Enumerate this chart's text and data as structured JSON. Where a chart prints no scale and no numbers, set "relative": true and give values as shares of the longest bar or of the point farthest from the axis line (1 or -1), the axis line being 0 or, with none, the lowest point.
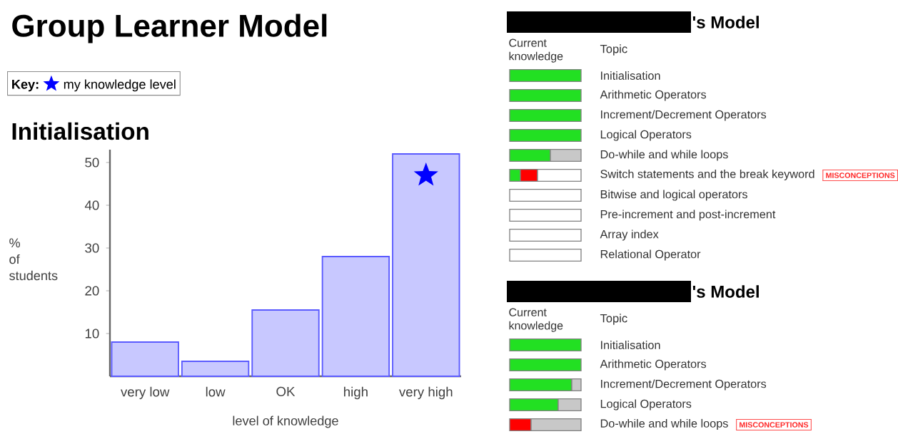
{
  "chart_data": [
    {
      "type": "bar",
      "title": "Group Learner Model",
      "subtitle": "Initialisation",
      "xlabel": "level of knowledge",
      "ylabel": "% of students",
      "legend_title": "Key:",
      "legend": "top left",
      "categories": [
        "very low",
        "low",
        "OK",
        "high",
        "very high"
      ],
      "series": [
        {
          "color": "#c8c8ff",
          "values": [
            8,
            3.5,
            15.5,
            28,
            52
          ]
        },
        {
          "type": "scatter",
          "name": "my knowledge level",
          "color": "#0000ff",
          "marker": "star",
          "x": [
            "very high"
          ],
          "values": [
            47
          ]
        }
      ],
      "ylim": [
        0,
        53
      ],
      "yticks": [
        10,
        20,
        30,
        40,
        50
      ]
    },
    {
      "type": "bar",
      "orientation": "horizontal",
      "stacked": true,
      "relative": true,
      "title": "'s Model",
      "xlabel": "Current knowledge",
      "ylabel": "Topic",
      "categories": [
        "Initialisation",
        "Arithmetic Operators",
        "Increment/Decrement Operators",
        "Logical Operators",
        "Do-while and while loops",
        "Switch statements and the break keyword",
        "Bitwise and logical operators",
        "Pre-increment and post-increment",
        "Array index",
        "Relational Operator"
      ],
      "series": [
        {
          "color": "#22e022",
          "values": [
            1,
            1,
            1,
            1,
            0.57,
            0.15,
            0,
            0,
            0,
            0
          ]
        },
        {
          "color": "#ff0000",
          "values": [
            0,
            0,
            0,
            0,
            0,
            0.24,
            0,
            0,
            0,
            0
          ]
        },
        {
          "color": "#c8c8c8",
          "values": [
            0,
            0,
            0,
            0,
            0.43,
            0,
            0,
            0,
            0,
            0
          ]
        },
        {
          "color": "#ffffff",
          "values": [
            0,
            0,
            0,
            0,
            0,
            0.61,
            1,
            1,
            1,
            1
          ]
        }
      ],
      "annotations": [
        "MISCONCEPTIONS"
      ]
    },
    {
      "type": "bar",
      "orientation": "horizontal",
      "stacked": true,
      "relative": true,
      "title": "'s Model",
      "xlabel": "Current knowledge",
      "ylabel": "Topic",
      "categories": [
        "Initialisation",
        "Arithmetic Operators",
        "Increment/Decrement Operators",
        "Logical Operators",
        "Do-while and while loops"
      ],
      "series": [
        {
          "color": "#22e022",
          "values": [
            1,
            1,
            0.87,
            0.68,
            0
          ]
        },
        {
          "color": "#ff0000",
          "values": [
            0,
            0,
            0,
            0,
            0.3
          ]
        },
        {
          "color": "#c8c8c8",
          "values": [
            0,
            0,
            0.13,
            0.32,
            0.7
          ]
        },
        {
          "color": "#ffffff",
          "values": [
            0,
            0,
            0,
            0,
            0
          ]
        }
      ],
      "annotations": [
        "MISCONCEPTIONS"
      ]
    }
  ]
}
